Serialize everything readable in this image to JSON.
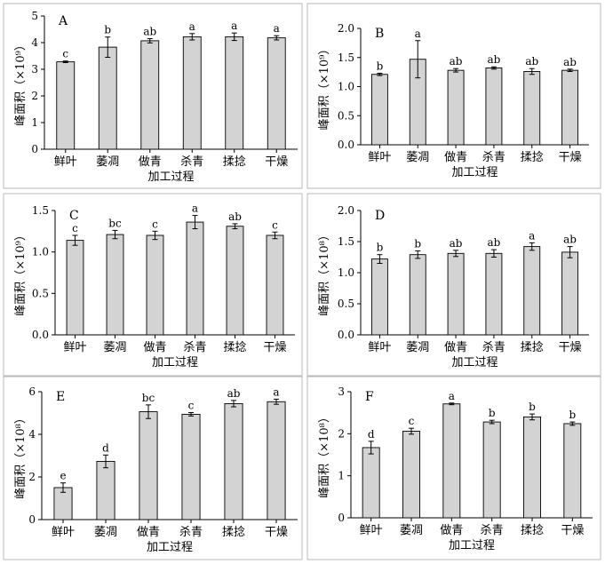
{
  "chart_data": [
    {
      "type": "bar",
      "panel_label": "A",
      "categories": [
        "鲜叶",
        "萎凋",
        "做青",
        "杀青",
        "揉捻",
        "干燥"
      ],
      "xlabel": "加工过程",
      "ylabel": "峰面积（×10⁹）",
      "ylim": [
        0,
        5
      ],
      "yticks": [
        "0",
        "1",
        "2",
        "3",
        "4",
        "5"
      ],
      "values": [
        3.28,
        3.83,
        4.07,
        4.22,
        4.22,
        4.18
      ],
      "errors": [
        0.03,
        0.38,
        0.08,
        0.12,
        0.14,
        0.08
      ],
      "significance": [
        "c",
        "b",
        "ab",
        "a",
        "a",
        "a"
      ]
    },
    {
      "type": "bar",
      "panel_label": "B",
      "categories": [
        "鲜叶",
        "萎凋",
        "做青",
        "杀青",
        "揉捻",
        "干燥"
      ],
      "xlabel": "加工过程",
      "ylabel": "峰面积（×10⁹）",
      "ylim": [
        0,
        2.0
      ],
      "yticks": [
        "0.0",
        "0.5",
        "1.0",
        "1.5",
        "2.0"
      ],
      "values": [
        1.21,
        1.47,
        1.28,
        1.32,
        1.26,
        1.28
      ],
      "errors": [
        0.02,
        0.32,
        0.03,
        0.02,
        0.05,
        0.02
      ],
      "significance": [
        "b",
        "a",
        "ab",
        "ab",
        "ab",
        "ab"
      ]
    },
    {
      "type": "bar",
      "panel_label": "C",
      "categories": [
        "鲜叶",
        "萎凋",
        "做青",
        "杀青",
        "揉捻",
        "干燥"
      ],
      "xlabel": "加工过程",
      "ylabel": "峰面积（×10⁹）",
      "ylim": [
        0,
        1.5
      ],
      "yticks": [
        "0.0",
        "0.5",
        "1.0",
        "1.5"
      ],
      "values": [
        1.14,
        1.21,
        1.2,
        1.36,
        1.31,
        1.2
      ],
      "errors": [
        0.06,
        0.05,
        0.05,
        0.08,
        0.03,
        0.04
      ],
      "significance": [
        "c",
        "bc",
        "c",
        "a",
        "ab",
        "c"
      ]
    },
    {
      "type": "bar",
      "panel_label": "D",
      "categories": [
        "鲜叶",
        "萎凋",
        "做青",
        "杀青",
        "揉捻",
        "干燥"
      ],
      "xlabel": "加工过程",
      "ylabel": "峰面积（×10⁸）",
      "ylim": [
        0,
        2.0
      ],
      "yticks": [
        "0.0",
        "0.5",
        "1.0",
        "1.5",
        "2.0"
      ],
      "values": [
        1.22,
        1.29,
        1.31,
        1.31,
        1.42,
        1.33
      ],
      "errors": [
        0.07,
        0.06,
        0.05,
        0.06,
        0.06,
        0.09
      ],
      "significance": [
        "b",
        "b",
        "ab",
        "ab",
        "a",
        "ab"
      ]
    },
    {
      "type": "bar",
      "panel_label": "E",
      "categories": [
        "鲜叶",
        "萎凋",
        "做青",
        "杀青",
        "揉捻",
        "干燥"
      ],
      "xlabel": "加工过程",
      "ylabel": "峰面积（×10⁸）",
      "ylim": [
        0,
        6
      ],
      "yticks": [
        "0",
        "2",
        "4",
        "6"
      ],
      "values": [
        1.5,
        2.73,
        5.06,
        4.94,
        5.44,
        5.53
      ],
      "errors": [
        0.22,
        0.3,
        0.32,
        0.08,
        0.15,
        0.12
      ],
      "significance": [
        "e",
        "d",
        "bc",
        "c",
        "ab",
        "a"
      ]
    },
    {
      "type": "bar",
      "panel_label": "F",
      "categories": [
        "鲜叶",
        "萎凋",
        "做青",
        "杀青",
        "揉捻",
        "干燥"
      ],
      "xlabel": "加工过程",
      "ylabel": "峰面积（×10⁸）",
      "ylim": [
        0,
        3
      ],
      "yticks": [
        "0",
        "1",
        "2",
        "3"
      ],
      "values": [
        1.67,
        2.06,
        2.71,
        2.28,
        2.4,
        2.24
      ],
      "errors": [
        0.15,
        0.07,
        0.02,
        0.04,
        0.07,
        0.04
      ],
      "significance": [
        "d",
        "c",
        "a",
        "b",
        "b",
        "b"
      ]
    }
  ]
}
